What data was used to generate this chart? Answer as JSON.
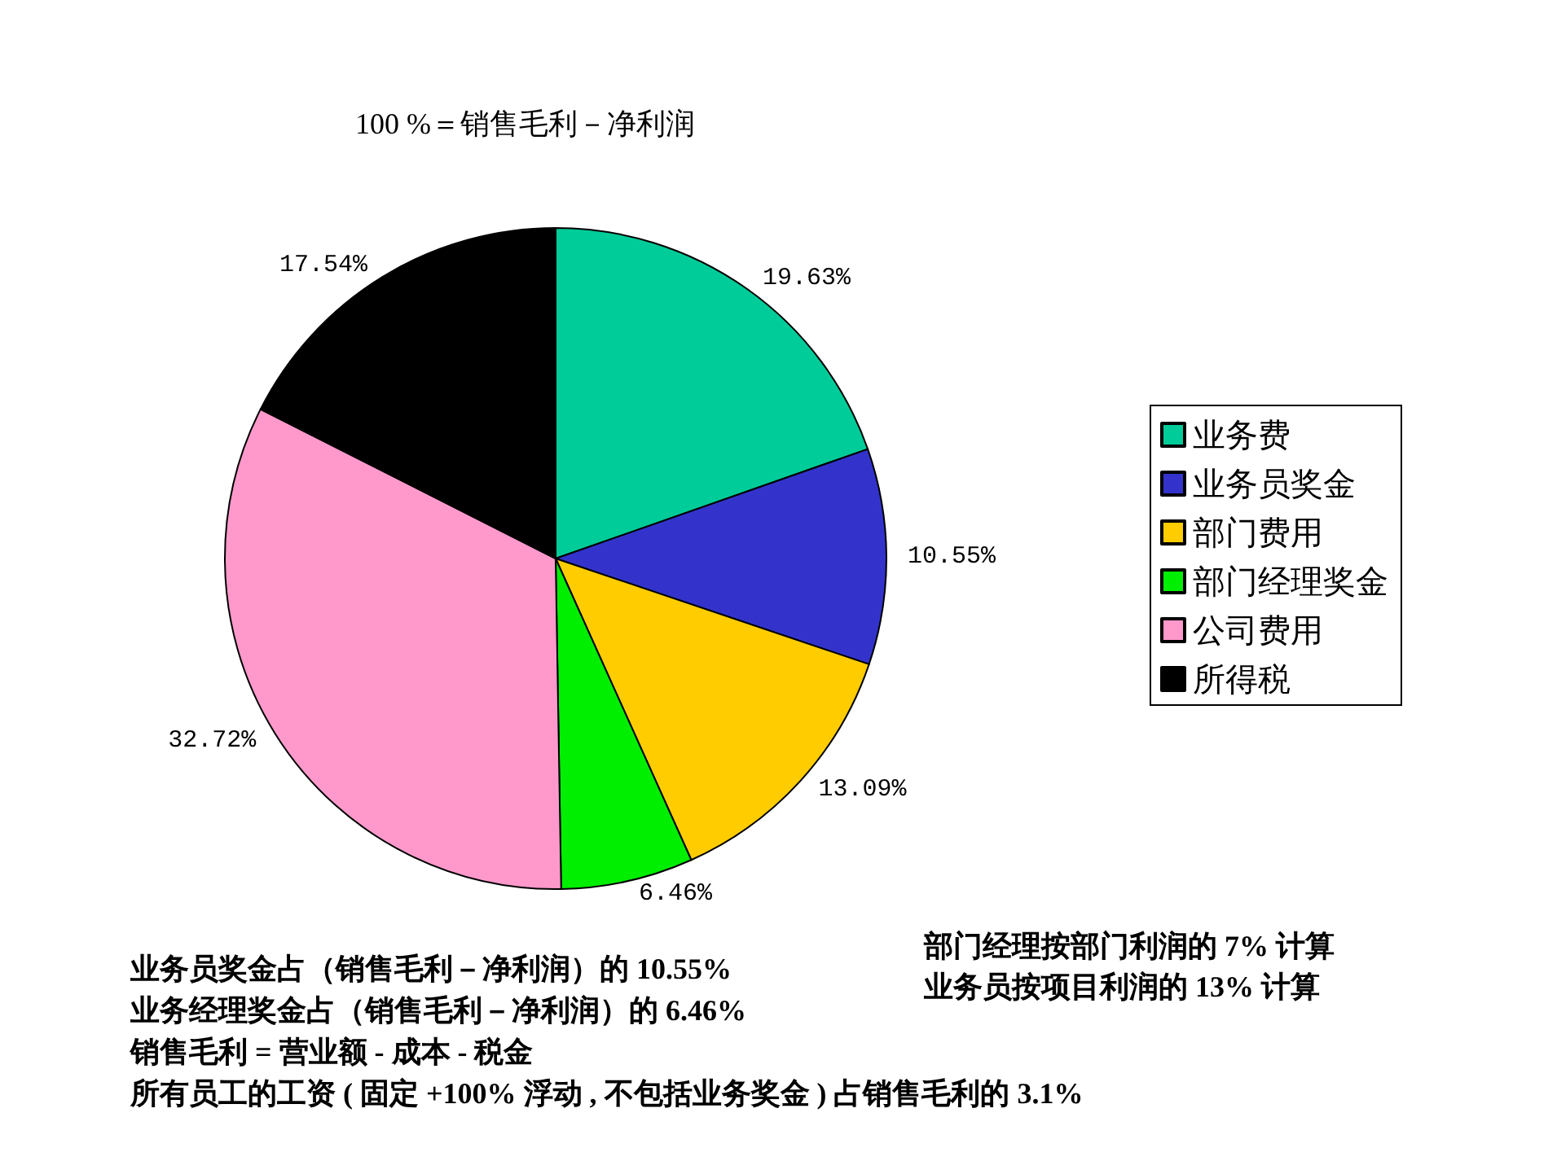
{
  "chart_data": {
    "type": "pie",
    "title": "100 %＝销售毛利－净利润",
    "categories": [
      "业务费",
      "业务员奖金",
      "部门费用",
      "部门经理奖金",
      "公司费用",
      "所得税"
    ],
    "values": [
      19.63,
      10.55,
      13.09,
      6.46,
      32.72,
      17.54
    ],
    "colors": [
      "#00cc99",
      "#3333cc",
      "#ffcc00",
      "#00ee00",
      "#ff99cc",
      "#000000"
    ],
    "value_labels": [
      "19.63%",
      "10.55%",
      "13.09%",
      "6.46%",
      "32.72%",
      "17.54%"
    ],
    "legend": "right",
    "annotations": [
      "业务员奖金占（销售毛利－净利润）的 10.55%",
      "业务经理奖金占（销售毛利－净利润）的 6.46%",
      "销售毛利 = 营业额 - 成本 - 税金",
      "所有员工的工资 ( 固定 +100% 浮动 , 不包括业务奖金 ) 占销售毛利的 3.1%",
      "部门经理按部门利润的 7% 计算",
      "业务员按项目利润的 13% 计算"
    ]
  }
}
